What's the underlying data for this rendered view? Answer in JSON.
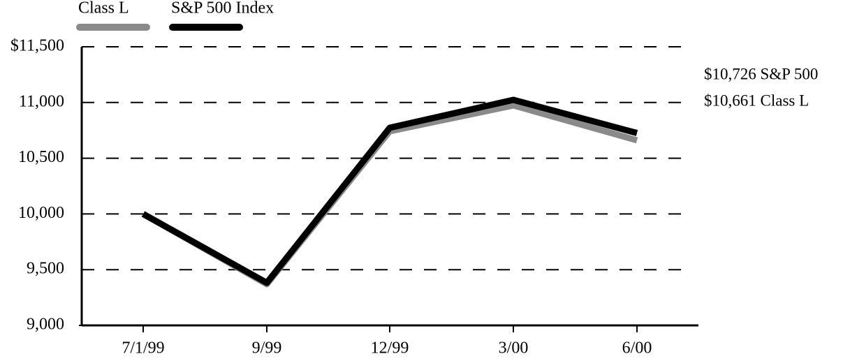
{
  "chart_data": {
    "type": "line",
    "categories": [
      "7/1/99",
      "9/99",
      "12/99",
      "3/00",
      "6/00"
    ],
    "series": [
      {
        "name": "Class L",
        "color": "#8a8a8a",
        "values": [
          10000,
          9370,
          10742,
          10974,
          10661
        ]
      },
      {
        "name": "S&P 500 Index",
        "color": "#000000",
        "values": [
          10000,
          9382,
          10773,
          11024,
          10726
        ]
      }
    ],
    "ylim": [
      9000,
      11500
    ],
    "yticks": [
      {
        "value": 9000,
        "label": "9,000"
      },
      {
        "value": 9500,
        "label": "9,500"
      },
      {
        "value": 10000,
        "label": "10,000"
      },
      {
        "value": 10500,
        "label": "10,500"
      },
      {
        "value": 11000,
        "label": "11,000"
      },
      {
        "value": 11500,
        "label": "$11,500"
      }
    ],
    "grid": true,
    "legend": "top-left",
    "annotations": [
      "$10,726 S&P 500",
      "$10,661 Class L"
    ]
  }
}
